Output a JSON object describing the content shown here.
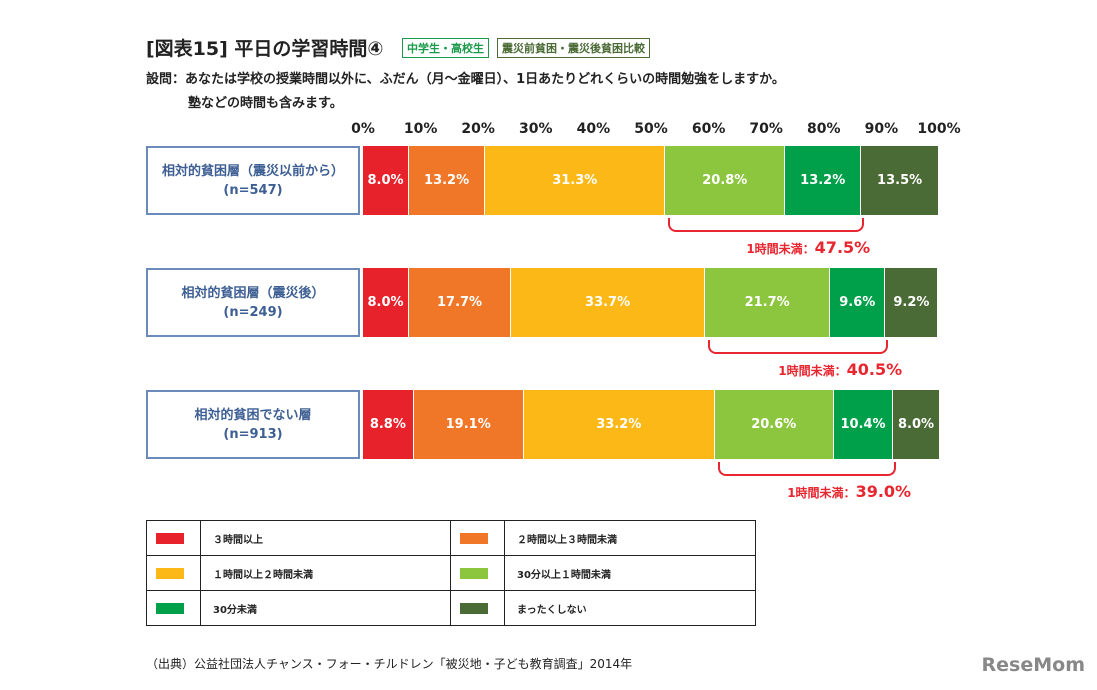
{
  "header": {
    "title": "[図表15] 平日の学習時間④",
    "tag1": "中学生・高校生",
    "tag2": "震災前貧困・震災後貧困比較",
    "question_line1": "設問：あなたは学校の授業時間以外に、ふだん（月～金曜日）、1日あたりどれくらいの時間勉強をしますか。",
    "question_line2": "塾などの時間も含みます。"
  },
  "chart_data": {
    "type": "bar",
    "orientation": "horizontal",
    "stacked": true,
    "xlim": [
      0,
      100
    ],
    "ticks": [
      "0%",
      "10%",
      "20%",
      "30%",
      "40%",
      "50%",
      "60%",
      "70%",
      "80%",
      "90%",
      "100%"
    ],
    "categories": [
      {
        "label": "相対的貧困層（震災以前から）",
        "n": "(n=547)"
      },
      {
        "label": "相対的貧困層（震災後）",
        "n": "(n=249)"
      },
      {
        "label": "相対的貧困でない層",
        "n": "(n=913)"
      }
    ],
    "series": [
      {
        "name": "３時間以上",
        "color": "#e8222b",
        "values": [
          8.0,
          8.0,
          8.8
        ]
      },
      {
        "name": "２時間以上３時間未満",
        "color": "#f07628",
        "values": [
          13.2,
          17.7,
          19.1
        ]
      },
      {
        "name": "１時間以上２時間未満",
        "color": "#fbb817",
        "values": [
          31.3,
          33.7,
          33.2
        ]
      },
      {
        "name": "30分以上１時間未満",
        "color": "#8cc63f",
        "values": [
          20.8,
          21.7,
          20.6
        ]
      },
      {
        "name": "30分未満",
        "color": "#00a04a",
        "values": [
          13.2,
          9.6,
          10.4
        ]
      },
      {
        "name": "まったくしない",
        "color": "#4a6b35",
        "values": [
          13.5,
          9.2,
          8.0
        ]
      }
    ],
    "annotations": [
      {
        "label": "1時間未満：",
        "value": "47.5%"
      },
      {
        "label": "1時間未満：",
        "value": "40.5%"
      },
      {
        "label": "1時間未満：",
        "value": "39.0%"
      }
    ]
  },
  "footer": {
    "source": "（出典）公益社団法人チャンス・フォー・チルドレン「被災地・子ども教育調査」2014年",
    "logo": "ReseMom"
  }
}
